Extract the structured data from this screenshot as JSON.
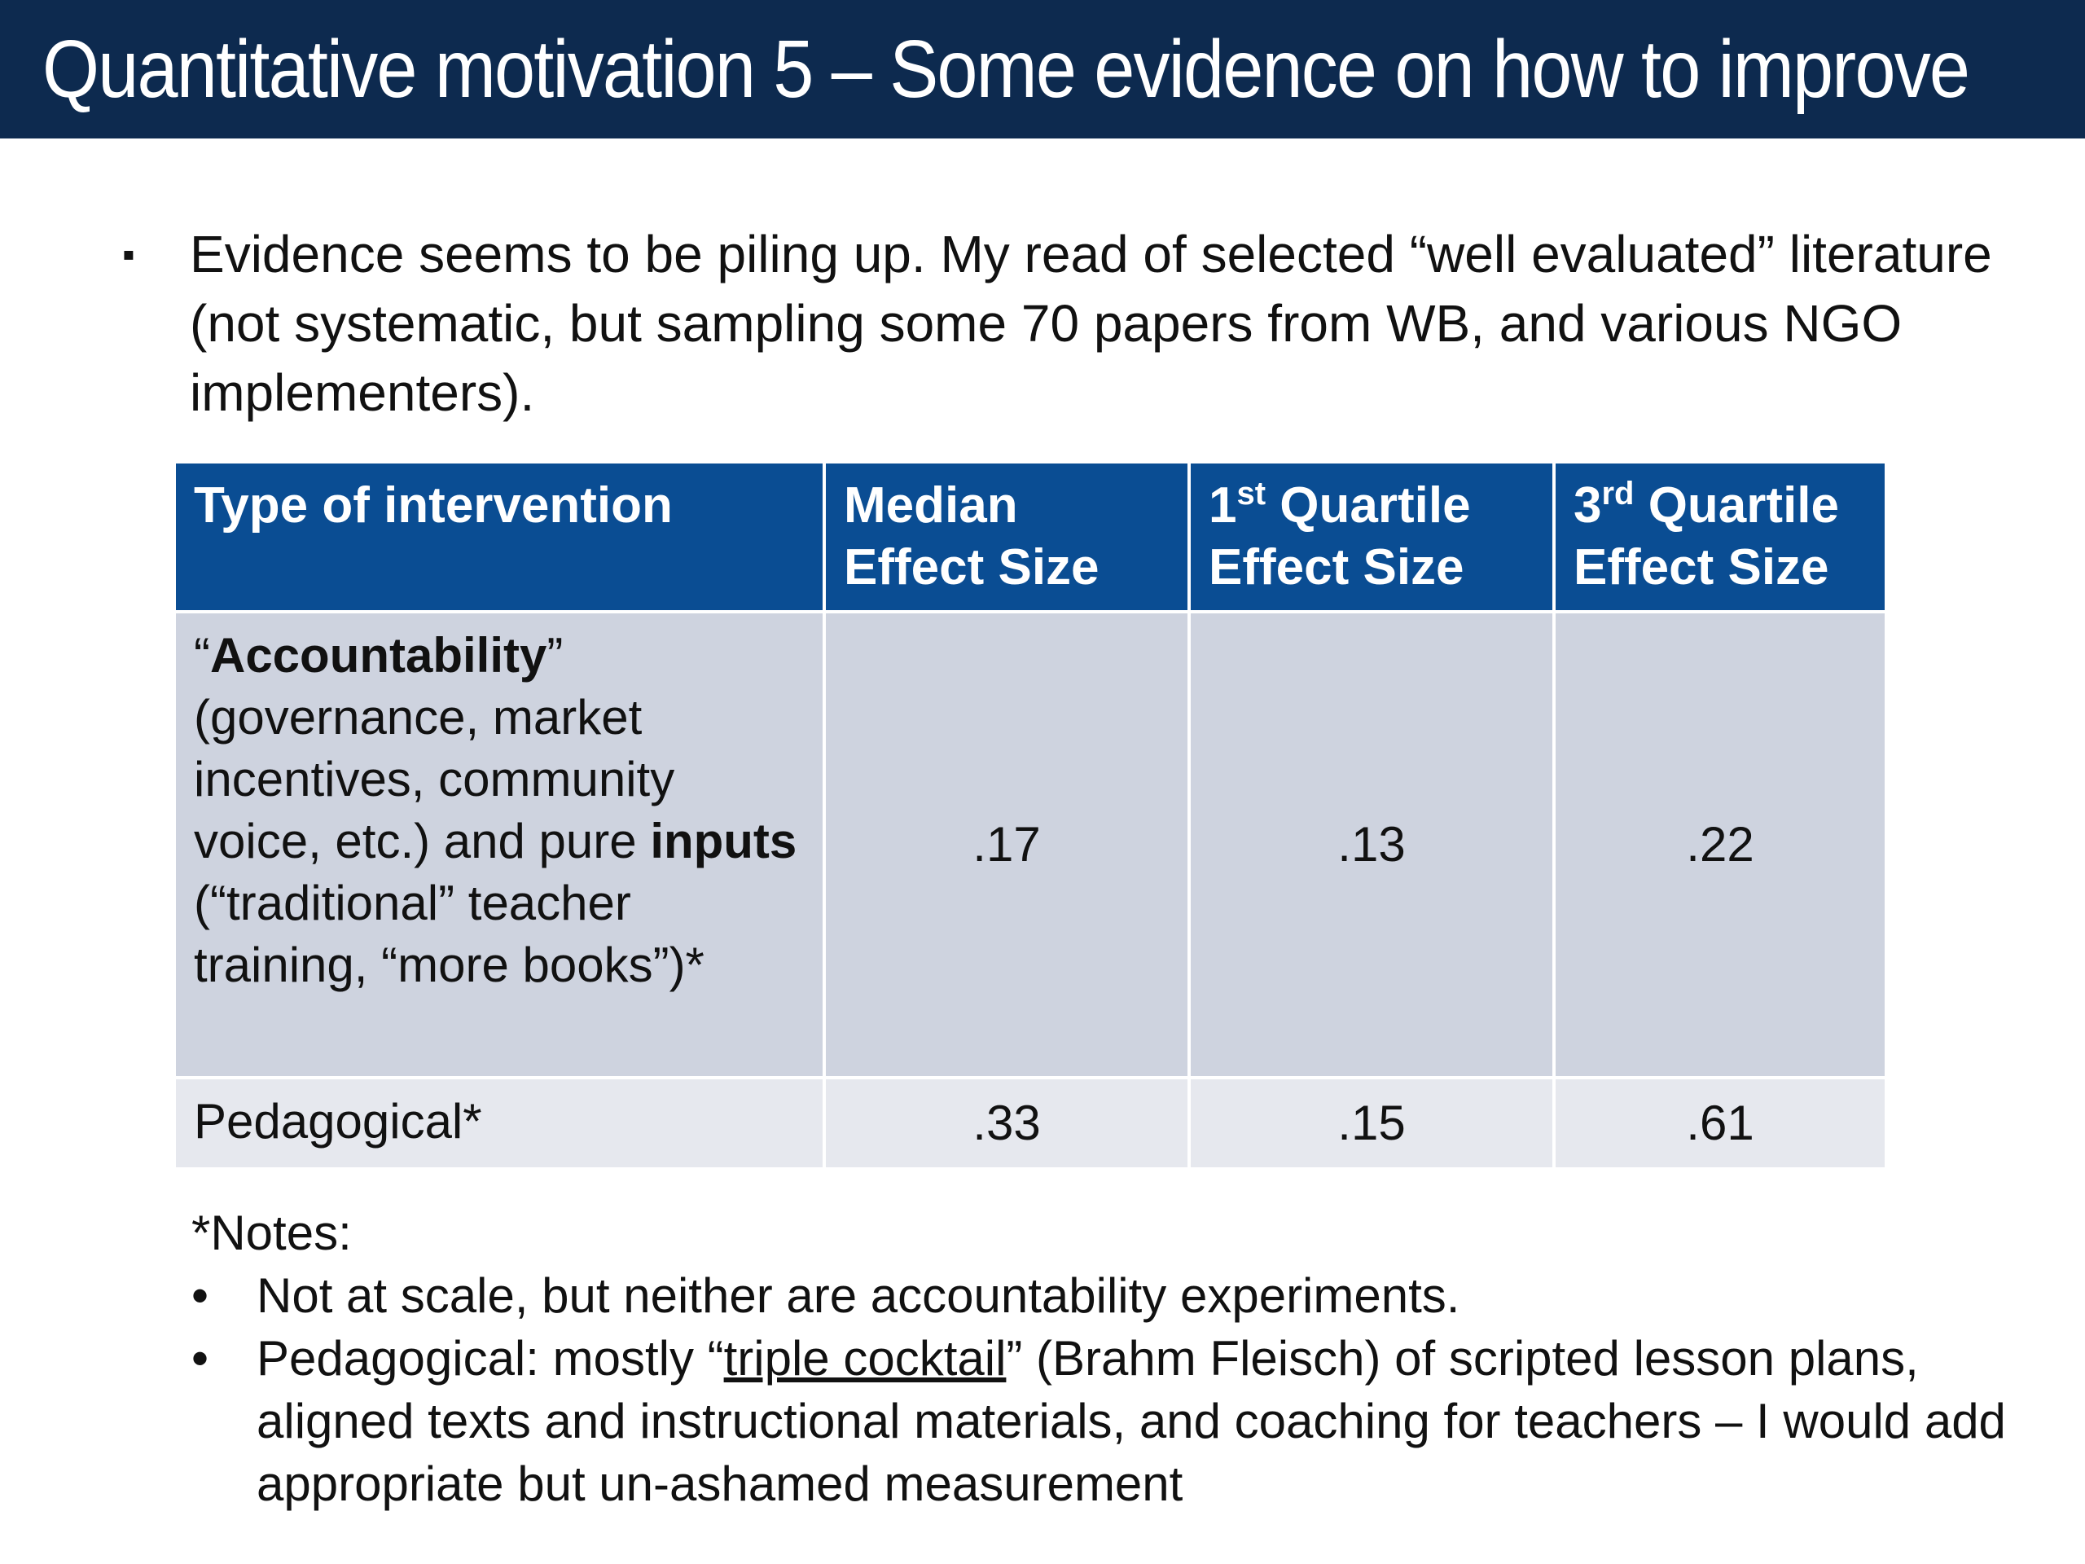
{
  "slide": {
    "title": "Quantitative motivation 5 – Some evidence on how to improve"
  },
  "intro": {
    "bullet": "▪",
    "text": "Evidence seems to be piling up.  My read of selected “well evaluated” literature (not systematic, but sampling some 70 papers from WB, and various NGO implementers)."
  },
  "table": {
    "headers": {
      "type": "Type of intervention",
      "median_line1": "Median",
      "median_line2": "Effect Size",
      "q1_num": "1",
      "q1_sup": "st",
      "q1_word": " Quartile",
      "q1_line2": "Effect Size",
      "q3_num": "3",
      "q3_sup": "rd",
      "q3_word": " Quartile",
      "q3_line2": "Effect Size"
    },
    "rows": [
      {
        "label_open_quote": "“",
        "label_bold1": "Accountability",
        "label_close_quote": "”",
        "label_mid": " (governance, market incentives, community voice, etc.) and pure ",
        "label_bold2": "inputs",
        "label_end": " (“traditional” teacher training, “more books”)*",
        "median": ".17",
        "q1": ".13",
        "q3": ".22"
      },
      {
        "label": "Pedagogical*",
        "median": ".33",
        "q1": ".15",
        "q3": ".61"
      }
    ]
  },
  "notes": {
    "heading": "*Notes:",
    "bullet_char": "•",
    "item1": "Not at scale, but neither are accountability experiments.",
    "item2_pre": "Pedagogical: mostly “",
    "item2_link": "triple cocktail",
    "item2_post": "” (Brahm Fleisch) of scripted lesson plans, aligned texts and instructional materials, and coaching for teachers – I would add appropriate but un-ashamed measurement"
  },
  "colors": {
    "title_bar": "#0d2a4f",
    "table_header": "#0a4d93",
    "row_dark": "#ced3df",
    "row_light": "#e6e8ee"
  }
}
